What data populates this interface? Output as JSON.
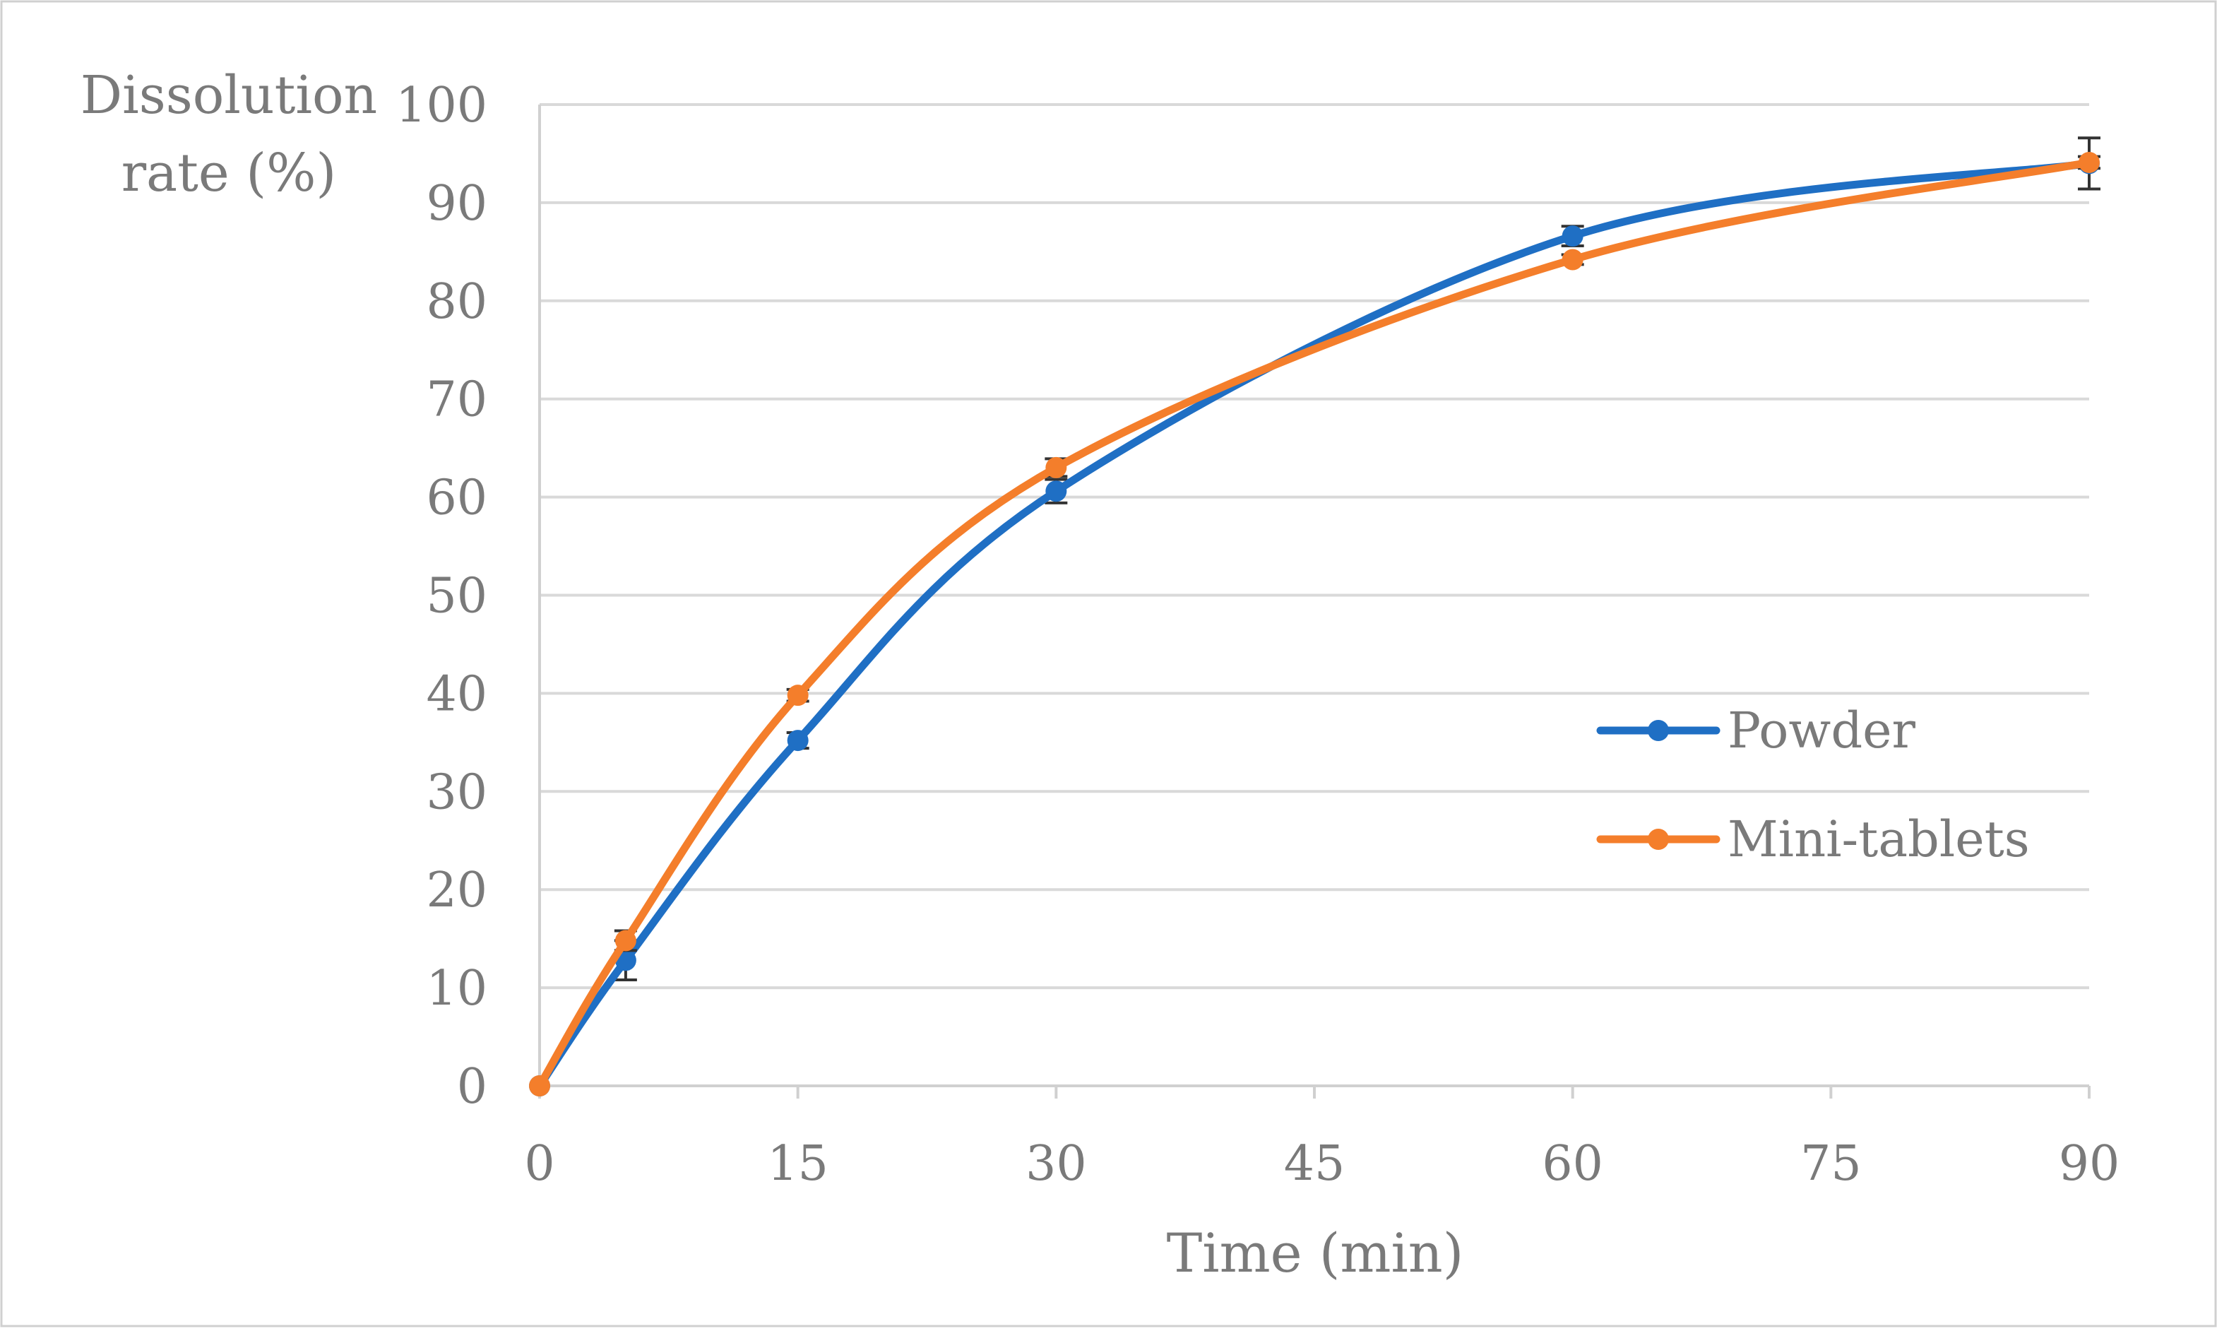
{
  "chart_data": {
    "type": "line",
    "title": "",
    "ylabel_lines": [
      "Dissolution",
      "rate (%)"
    ],
    "xlabel": "Time (min)",
    "x_ticks": [
      0,
      15,
      30,
      45,
      60,
      75,
      90
    ],
    "y_ticks": [
      0,
      10,
      20,
      30,
      40,
      50,
      60,
      70,
      80,
      90,
      100
    ],
    "xlim": [
      0,
      90
    ],
    "ylim": [
      0,
      100
    ],
    "grid": "horizontal",
    "legend_position": "right-middle",
    "series": [
      {
        "name": "Powder",
        "color": "#1f6fc4",
        "x": [
          0,
          5,
          15,
          30,
          60,
          90
        ],
        "y": [
          0,
          12.8,
          35.2,
          60.6,
          86.6,
          94.0
        ],
        "err": [
          0,
          2.0,
          0.8,
          1.2,
          1.0,
          2.6
        ]
      },
      {
        "name": "Mini-tablets",
        "color": "#f47e2b",
        "x": [
          0,
          5,
          15,
          30,
          60,
          90
        ],
        "y": [
          0,
          14.8,
          39.8,
          63.0,
          84.2,
          94.1
        ],
        "err": [
          0,
          1.0,
          0.6,
          0.9,
          0.5,
          0.6
        ]
      }
    ]
  }
}
